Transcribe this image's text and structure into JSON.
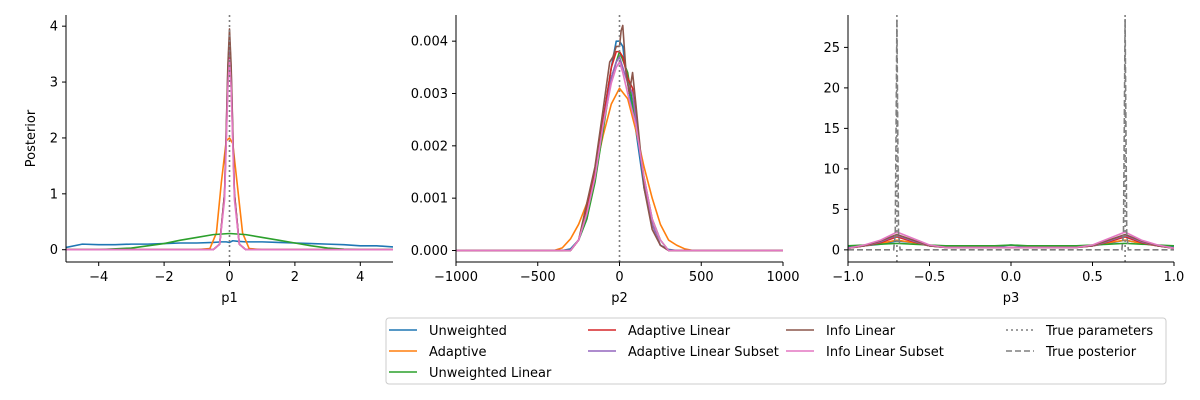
{
  "chart_data": [
    {
      "type": "line",
      "xlabel": "p1",
      "ylabel": "Posterior",
      "xlim": [
        -5,
        5
      ],
      "ylim": [
        -0.22,
        4.2
      ],
      "xticks": [
        -4,
        -2,
        0,
        2,
        4
      ],
      "xtick_labels": [
        "−4",
        "−2",
        "0",
        "2",
        "4"
      ],
      "yticks": [
        0,
        1,
        2,
        3,
        4
      ],
      "ytick_labels": [
        "0",
        "1",
        "2",
        "3",
        "4"
      ],
      "true_parameters": [
        0
      ],
      "series": [
        {
          "name": "Unweighted",
          "x": [
            -5,
            -4.5,
            -4,
            -3.5,
            -3,
            -2.5,
            -2,
            -1.5,
            -1,
            -0.5,
            -0.25,
            -0.1,
            0,
            0.1,
            0.25,
            0.5,
            1,
            1.5,
            2,
            2.5,
            3,
            3.5,
            4,
            4.5,
            5
          ],
          "y": [
            0.04,
            0.1,
            0.09,
            0.09,
            0.1,
            0.1,
            0.11,
            0.12,
            0.12,
            0.13,
            0.14,
            0.14,
            0.13,
            0.16,
            0.15,
            0.14,
            0.14,
            0.13,
            0.12,
            0.11,
            0.1,
            0.09,
            0.07,
            0.07,
            0.05
          ]
        },
        {
          "name": "Adaptive",
          "x": [
            -5,
            -1,
            -0.6,
            -0.4,
            -0.25,
            -0.1,
            0,
            0.1,
            0.25,
            0.4,
            0.6,
            1,
            5
          ],
          "y": [
            0,
            0,
            0.02,
            0.3,
            1.2,
            1.95,
            2.0,
            1.9,
            1.1,
            0.3,
            0.02,
            0,
            0
          ]
        },
        {
          "name": "Unweighted Linear",
          "x": [
            -5,
            -4,
            -3,
            -2.5,
            -2,
            -1.5,
            -1,
            -0.5,
            0,
            0.5,
            1,
            1.5,
            2,
            2.5,
            3,
            3.5,
            4,
            5
          ],
          "y": [
            0,
            0,
            0.03,
            0.07,
            0.11,
            0.17,
            0.22,
            0.27,
            0.29,
            0.27,
            0.22,
            0.17,
            0.12,
            0.07,
            0.03,
            0.01,
            0,
            0
          ]
        },
        {
          "name": "Adaptive Linear",
          "x": [
            -5,
            -0.5,
            -0.3,
            -0.15,
            -0.05,
            0,
            0.05,
            0.15,
            0.3,
            0.5,
            5
          ],
          "y": [
            0,
            0,
            0.1,
            1.0,
            3.0,
            3.55,
            3.0,
            1.0,
            0.1,
            0,
            0
          ]
        },
        {
          "name": "Adaptive Linear Subset",
          "x": [
            -5,
            -0.5,
            -0.3,
            -0.15,
            -0.05,
            0,
            0.05,
            0.15,
            0.3,
            0.5,
            5
          ],
          "y": [
            0,
            0,
            0.1,
            1.0,
            3.2,
            3.85,
            3.2,
            1.0,
            0.1,
            0,
            0
          ]
        },
        {
          "name": "Info Linear",
          "x": [
            -5,
            -0.5,
            -0.3,
            -0.15,
            -0.05,
            0,
            0.05,
            0.15,
            0.3,
            0.5,
            5
          ],
          "y": [
            0,
            0,
            0.1,
            1.0,
            3.3,
            3.95,
            3.3,
            1.0,
            0.1,
            0,
            0
          ]
        },
        {
          "name": "Info Linear Subset",
          "x": [
            -5,
            -0.5,
            -0.3,
            -0.15,
            -0.05,
            0,
            0.05,
            0.15,
            0.3,
            0.5,
            5
          ],
          "y": [
            0,
            0,
            0.1,
            0.9,
            2.9,
            3.4,
            2.9,
            0.9,
            0.1,
            0,
            0
          ]
        }
      ]
    },
    {
      "type": "line",
      "xlabel": "p2",
      "ylabel": "",
      "xlim": [
        -1000,
        1000
      ],
      "ylim": [
        -0.00022,
        0.0045
      ],
      "xticks": [
        -1000,
        -500,
        0,
        500,
        1000
      ],
      "xtick_labels": [
        "−1000",
        "−500",
        "0",
        "500",
        "1000"
      ],
      "yticks": [
        0,
        0.001,
        0.002,
        0.003,
        0.004
      ],
      "ytick_labels": [
        "0.000",
        "0.001",
        "0.002",
        "0.003",
        "0.004"
      ],
      "true_parameters": [
        0
      ],
      "series": [
        {
          "name": "Unweighted",
          "x": [
            -1000,
            -350,
            -300,
            -250,
            -200,
            -150,
            -100,
            -50,
            -20,
            0,
            20,
            50,
            100,
            150,
            200,
            250,
            300,
            350,
            1000
          ],
          "y": [
            0,
            0,
            3e-05,
            0.0002,
            0.0006,
            0.0014,
            0.0025,
            0.0035,
            0.004,
            0.004,
            0.0039,
            0.0032,
            0.0023,
            0.0012,
            0.0005,
            0.0001,
            2e-05,
            0,
            0
          ]
        },
        {
          "name": "Adaptive",
          "x": [
            -1000,
            -400,
            -350,
            -300,
            -250,
            -200,
            -150,
            -100,
            -50,
            0,
            50,
            100,
            150,
            200,
            250,
            300,
            350,
            400,
            450,
            1000
          ],
          "y": [
            0,
            0,
            5e-05,
            0.00022,
            0.0005,
            0.0009,
            0.0015,
            0.0022,
            0.0028,
            0.0031,
            0.0029,
            0.0023,
            0.0016,
            0.001,
            0.0005,
            0.0002,
            0.0001,
            3e-05,
            0,
            0
          ]
        },
        {
          "name": "Unweighted Linear",
          "x": [
            -1000,
            -300,
            -250,
            -200,
            -150,
            -100,
            -50,
            0,
            50,
            100,
            150,
            200,
            250,
            300,
            1000
          ],
          "y": [
            0,
            0,
            0.0002,
            0.0006,
            0.0013,
            0.0023,
            0.0033,
            0.0038,
            0.0034,
            0.0024,
            0.0014,
            0.0006,
            0.0002,
            0,
            0
          ]
        },
        {
          "name": "Adaptive Linear",
          "x": [
            -1000,
            -300,
            -250,
            -200,
            -150,
            -100,
            -50,
            -20,
            0,
            20,
            50,
            80,
            100,
            150,
            200,
            250,
            300,
            1000
          ],
          "y": [
            0,
            0,
            0.0002,
            0.0008,
            0.0015,
            0.0025,
            0.0035,
            0.0038,
            0.0038,
            0.0037,
            0.0033,
            0.0031,
            0.0026,
            0.0013,
            0.0005,
            0.0001,
            0,
            0
          ]
        },
        {
          "name": "Adaptive Linear Subset",
          "x": [
            -1000,
            -300,
            -250,
            -200,
            -150,
            -100,
            -50,
            -20,
            0,
            20,
            50,
            80,
            100,
            150,
            200,
            250,
            300,
            1000
          ],
          "y": [
            0,
            0,
            0.0002,
            0.0007,
            0.0014,
            0.0024,
            0.0033,
            0.0036,
            0.0037,
            0.0035,
            0.0032,
            0.003,
            0.0025,
            0.0013,
            0.0005,
            0.0001,
            0,
            0
          ]
        },
        {
          "name": "Info Linear",
          "x": [
            -1000,
            -300,
            -250,
            -200,
            -150,
            -100,
            -60,
            -40,
            -20,
            0,
            10,
            20,
            40,
            60,
            80,
            100,
            150,
            200,
            250,
            300,
            1000
          ],
          "y": [
            0,
            0,
            0.0002,
            0.0009,
            0.0016,
            0.0027,
            0.0036,
            0.0037,
            0.0039,
            0.0039,
            0.0042,
            0.0043,
            0.0034,
            0.003,
            0.0034,
            0.0028,
            0.0012,
            0.0004,
            0.0001,
            0,
            0
          ]
        },
        {
          "name": "Info Linear Subset",
          "x": [
            -1000,
            -300,
            -250,
            -200,
            -150,
            -100,
            -50,
            -20,
            0,
            20,
            50,
            100,
            150,
            200,
            250,
            300,
            1000
          ],
          "y": [
            0,
            0,
            0.0002,
            0.0007,
            0.0014,
            0.0024,
            0.0032,
            0.0035,
            0.0036,
            0.0034,
            0.003,
            0.0024,
            0.0014,
            0.0006,
            0.0002,
            0,
            0
          ]
        }
      ]
    },
    {
      "type": "line",
      "xlabel": "p3",
      "ylabel": "",
      "xlim": [
        -1.0,
        1.0
      ],
      "ylim": [
        -1.5,
        29
      ],
      "xticks": [
        -1.0,
        -0.5,
        0.0,
        0.5,
        1.0
      ],
      "xtick_labels": [
        "−1.0",
        "−0.5",
        "0.0",
        "0.5",
        "1.0"
      ],
      "yticks": [
        0,
        5,
        10,
        15,
        20,
        25
      ],
      "ytick_labels": [
        "0",
        "5",
        "10",
        "15",
        "20",
        "25"
      ],
      "true_parameters": [
        -0.7,
        0.7
      ],
      "true_posterior": {
        "x": [
          -1.0,
          -0.72,
          -0.71,
          -0.7,
          -0.69,
          -0.68,
          0.68,
          0.69,
          0.7,
          0.71,
          0.72,
          1.0
        ],
        "y": [
          0,
          0,
          2.0,
          28.5,
          2.0,
          0,
          0,
          2.0,
          28.5,
          2.0,
          0,
          0
        ]
      },
      "series": [
        {
          "name": "Unweighted",
          "x": [
            -1.0,
            -0.9,
            -0.8,
            -0.7,
            -0.6,
            -0.5,
            -0.4,
            -0.3,
            -0.2,
            -0.1,
            0.0,
            0.1,
            0.2,
            0.3,
            0.4,
            0.5,
            0.6,
            0.7,
            0.8,
            0.9,
            1.0
          ],
          "y": [
            0.3,
            0.5,
            0.7,
            1.1,
            0.9,
            0.5,
            0.4,
            0.4,
            0.4,
            0.4,
            0.6,
            0.4,
            0.4,
            0.4,
            0.4,
            0.5,
            0.8,
            1.2,
            0.8,
            0.5,
            0.3
          ]
        },
        {
          "name": "Adaptive",
          "x": [
            -1.0,
            -0.9,
            -0.8,
            -0.7,
            -0.6,
            -0.5,
            -0.4,
            -0.2,
            0.0,
            0.2,
            0.4,
            0.5,
            0.6,
            0.7,
            0.8,
            0.9,
            1.0
          ],
          "y": [
            0.2,
            0.5,
            0.8,
            1.2,
            0.9,
            0.5,
            0.3,
            0.3,
            0.3,
            0.3,
            0.3,
            0.5,
            0.9,
            1.2,
            0.8,
            0.5,
            0.2
          ]
        },
        {
          "name": "Unweighted Linear",
          "x": [
            -1.0,
            -0.9,
            -0.8,
            -0.7,
            -0.6,
            -0.5,
            -0.4,
            -0.3,
            -0.2,
            -0.1,
            0.0,
            0.1,
            0.2,
            0.3,
            0.4,
            0.5,
            0.6,
            0.7,
            0.8,
            0.9,
            1.0
          ],
          "y": [
            0.5,
            0.6,
            0.7,
            0.8,
            0.7,
            0.6,
            0.5,
            0.5,
            0.5,
            0.5,
            0.6,
            0.5,
            0.5,
            0.5,
            0.5,
            0.6,
            0.7,
            0.8,
            0.7,
            0.6,
            0.5
          ]
        },
        {
          "name": "Adaptive Linear",
          "x": [
            -1.0,
            -0.9,
            -0.8,
            -0.7,
            -0.6,
            -0.5,
            -0.4,
            -0.2,
            0.0,
            0.2,
            0.4,
            0.5,
            0.6,
            0.7,
            0.8,
            0.9,
            1.0
          ],
          "y": [
            0.2,
            0.5,
            0.9,
            1.6,
            1.0,
            0.5,
            0.3,
            0.3,
            0.3,
            0.3,
            0.3,
            0.5,
            1.0,
            1.6,
            0.9,
            0.5,
            0.2
          ]
        },
        {
          "name": "Adaptive Linear Subset",
          "x": [
            -1.0,
            -0.9,
            -0.8,
            -0.7,
            -0.6,
            -0.5,
            -0.4,
            -0.2,
            0.0,
            0.2,
            0.4,
            0.5,
            0.6,
            0.7,
            0.8,
            0.9,
            1.0
          ],
          "y": [
            0.2,
            0.5,
            1.0,
            1.8,
            1.1,
            0.5,
            0.3,
            0.3,
            0.3,
            0.3,
            0.3,
            0.5,
            1.1,
            1.8,
            1.0,
            0.5,
            0.2
          ]
        },
        {
          "name": "Info Linear",
          "x": [
            -1.0,
            -0.9,
            -0.8,
            -0.7,
            -0.6,
            -0.5,
            -0.4,
            -0.2,
            0.0,
            0.2,
            0.4,
            0.5,
            0.6,
            0.7,
            0.8,
            0.9,
            1.0
          ],
          "y": [
            0.2,
            0.5,
            1.1,
            1.9,
            1.2,
            0.5,
            0.3,
            0.3,
            0.3,
            0.3,
            0.3,
            0.5,
            1.2,
            1.9,
            1.1,
            0.5,
            0.2
          ]
        },
        {
          "name": "Info Linear Subset",
          "x": [
            -1.0,
            -0.9,
            -0.8,
            -0.7,
            -0.6,
            -0.5,
            -0.4,
            -0.2,
            0.0,
            0.2,
            0.4,
            0.5,
            0.6,
            0.7,
            0.8,
            0.9,
            1.0
          ],
          "y": [
            0.2,
            0.6,
            1.2,
            2.2,
            1.4,
            0.6,
            0.3,
            0.3,
            0.3,
            0.3,
            0.3,
            0.6,
            1.4,
            2.2,
            1.2,
            0.6,
            0.2
          ]
        }
      ]
    }
  ],
  "legend": {
    "placement": "bottom-right",
    "entries": [
      {
        "label": "Unweighted",
        "color": "#1f77b4",
        "style": "solid"
      },
      {
        "label": "Adaptive",
        "color": "#ff7f0e",
        "style": "solid"
      },
      {
        "label": "Unweighted Linear",
        "color": "#2ca02c",
        "style": "solid"
      },
      {
        "label": "Adaptive Linear",
        "color": "#d62728",
        "style": "solid"
      },
      {
        "label": "Adaptive Linear Subset",
        "color": "#9467bd",
        "style": "solid"
      },
      {
        "label": "Info Linear",
        "color": "#8c564b",
        "style": "solid"
      },
      {
        "label": "Info Linear Subset",
        "color": "#e377c2",
        "style": "solid"
      },
      {
        "label": "True parameters",
        "color": "#7f7f7f",
        "style": "dotted"
      },
      {
        "label": "True posterior",
        "color": "#7f7f7f",
        "style": "dashed"
      }
    ]
  }
}
